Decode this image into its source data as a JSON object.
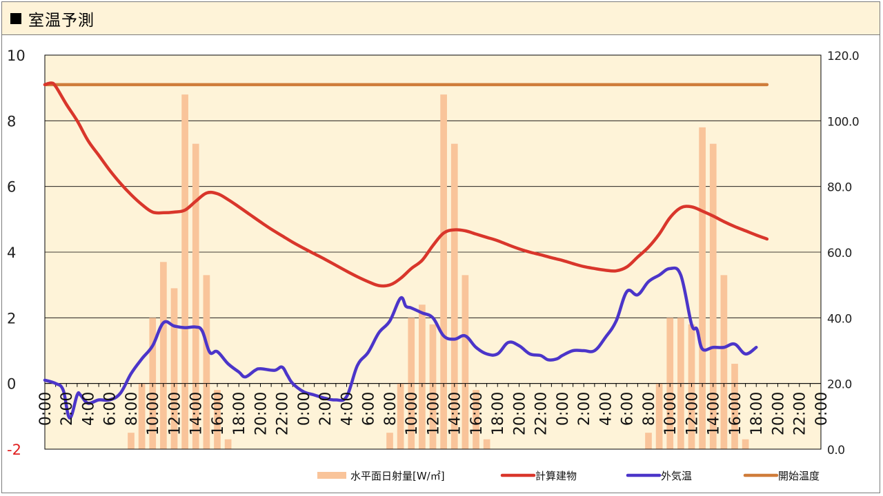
{
  "header": {
    "title": "室温予測",
    "marker_icon": "black-square-icon"
  },
  "chart_data": {
    "type": "bar+line",
    "title": "室温予測",
    "x_tick_labels": [
      "0:00",
      "2:00",
      "4:00",
      "6:00",
      "8:00",
      "10:00",
      "12:00",
      "14:00",
      "16:00",
      "18:00",
      "20:00",
      "22:00",
      "0:00",
      "2:00",
      "4:00",
      "6:00",
      "8:00",
      "10:00",
      "12:00",
      "14:00",
      "16:00",
      "18:00",
      "20:00",
      "22:00",
      "0:00",
      "2:00",
      "4:00",
      "6:00",
      "8:00",
      "10:00",
      "12:00",
      "14:00",
      "16:00",
      "18:00",
      "20:00",
      "22:00",
      "0:00"
    ],
    "hours": 72,
    "y_left": {
      "min": -2,
      "max": 10,
      "ticks": [
        "10",
        "8",
        "6",
        "4",
        "2",
        "0",
        "-2"
      ]
    },
    "y_right": {
      "min": 0,
      "max": 120,
      "ticks": [
        "120.0",
        "100.0",
        "80.0",
        "60.0",
        "40.0",
        "20.0",
        "0.0"
      ]
    },
    "grid": true,
    "legend": {
      "position": "bottom"
    },
    "series": [
      {
        "name": "水平面日射量[W/㎡]",
        "type": "bar",
        "axis": "right",
        "color": "#f9c49a",
        "points": [
          [
            8,
            5
          ],
          [
            9,
            20
          ],
          [
            10,
            40
          ],
          [
            11,
            57
          ],
          [
            12,
            49
          ],
          [
            13,
            108
          ],
          [
            14,
            93
          ],
          [
            15,
            53
          ],
          [
            16,
            18
          ],
          [
            17,
            3
          ],
          [
            32,
            5
          ],
          [
            33,
            20
          ],
          [
            34,
            40
          ],
          [
            35,
            44
          ],
          [
            36,
            38
          ],
          [
            37,
            108
          ],
          [
            38,
            93
          ],
          [
            39,
            53
          ],
          [
            40,
            18
          ],
          [
            41,
            3
          ],
          [
            56,
            5
          ],
          [
            57,
            20
          ],
          [
            58,
            40
          ],
          [
            59,
            40
          ],
          [
            60,
            38
          ],
          [
            61,
            98
          ],
          [
            62,
            93
          ],
          [
            63,
            53
          ],
          [
            64,
            26
          ],
          [
            65,
            3
          ]
        ]
      },
      {
        "name": "計算建物",
        "type": "line",
        "axis": "left",
        "color": "#d9362b",
        "points": [
          [
            0,
            9.1
          ],
          [
            0.6,
            9.15
          ],
          [
            1,
            9.05
          ],
          [
            2,
            8.5
          ],
          [
            3,
            8.0
          ],
          [
            4,
            7.4
          ],
          [
            5,
            6.95
          ],
          [
            6,
            6.5
          ],
          [
            7,
            6.1
          ],
          [
            8,
            5.75
          ],
          [
            9,
            5.45
          ],
          [
            10,
            5.22
          ],
          [
            11,
            5.2
          ],
          [
            12,
            5.22
          ],
          [
            13,
            5.28
          ],
          [
            14,
            5.55
          ],
          [
            15,
            5.8
          ],
          [
            16,
            5.78
          ],
          [
            17,
            5.6
          ],
          [
            18,
            5.38
          ],
          [
            19,
            5.15
          ],
          [
            20,
            4.92
          ],
          [
            21,
            4.7
          ],
          [
            22,
            4.5
          ],
          [
            23,
            4.3
          ],
          [
            24,
            4.12
          ],
          [
            25,
            3.95
          ],
          [
            26,
            3.78
          ],
          [
            27,
            3.6
          ],
          [
            28,
            3.42
          ],
          [
            29,
            3.25
          ],
          [
            30,
            3.1
          ],
          [
            31,
            2.98
          ],
          [
            32,
            3.0
          ],
          [
            33,
            3.2
          ],
          [
            34,
            3.5
          ],
          [
            35,
            3.75
          ],
          [
            36,
            4.2
          ],
          [
            37,
            4.58
          ],
          [
            38,
            4.68
          ],
          [
            39,
            4.65
          ],
          [
            40,
            4.55
          ],
          [
            41,
            4.45
          ],
          [
            42,
            4.35
          ],
          [
            43,
            4.22
          ],
          [
            44,
            4.1
          ],
          [
            45,
            4.0
          ],
          [
            46,
            3.92
          ],
          [
            47,
            3.83
          ],
          [
            48,
            3.75
          ],
          [
            49,
            3.65
          ],
          [
            50,
            3.56
          ],
          [
            51,
            3.5
          ],
          [
            52,
            3.45
          ],
          [
            53,
            3.43
          ],
          [
            54,
            3.55
          ],
          [
            55,
            3.85
          ],
          [
            56,
            4.15
          ],
          [
            57,
            4.55
          ],
          [
            58,
            5.05
          ],
          [
            59,
            5.35
          ],
          [
            60,
            5.38
          ],
          [
            61,
            5.25
          ],
          [
            62,
            5.1
          ],
          [
            63,
            4.93
          ],
          [
            64,
            4.78
          ],
          [
            65,
            4.65
          ],
          [
            66,
            4.52
          ],
          [
            67,
            4.4
          ]
        ]
      },
      {
        "name": "外気温",
        "type": "line",
        "axis": "left",
        "color": "#4b35c9",
        "points": [
          [
            0,
            0.1
          ],
          [
            1,
            0.0
          ],
          [
            1.7,
            -0.2
          ],
          [
            2.3,
            -1.05
          ],
          [
            3,
            -0.35
          ],
          [
            3.3,
            -0.35
          ],
          [
            4,
            -0.6
          ],
          [
            5,
            -0.5
          ],
          [
            6,
            -0.5
          ],
          [
            7,
            -0.3
          ],
          [
            8,
            0.3
          ],
          [
            9,
            0.75
          ],
          [
            10,
            1.15
          ],
          [
            11,
            1.85
          ],
          [
            12,
            1.75
          ],
          [
            13,
            1.7
          ],
          [
            14,
            1.72
          ],
          [
            14.6,
            1.6
          ],
          [
            15.3,
            0.95
          ],
          [
            16,
            0.97
          ],
          [
            17,
            0.6
          ],
          [
            18,
            0.35
          ],
          [
            18.6,
            0.2
          ],
          [
            19.5,
            0.4
          ],
          [
            20,
            0.45
          ],
          [
            21.3,
            0.4
          ],
          [
            22,
            0.5
          ],
          [
            22.5,
            0.25
          ],
          [
            23,
            0.0
          ],
          [
            24,
            -0.25
          ],
          [
            25,
            -0.35
          ],
          [
            26,
            -0.45
          ],
          [
            27,
            -0.5
          ],
          [
            28,
            -0.4
          ],
          [
            29,
            0.55
          ],
          [
            30,
            0.95
          ],
          [
            31,
            1.55
          ],
          [
            32,
            1.9
          ],
          [
            33,
            2.6
          ],
          [
            33.5,
            2.35
          ],
          [
            34,
            2.3
          ],
          [
            35,
            2.15
          ],
          [
            36,
            2.0
          ],
          [
            37,
            1.45
          ],
          [
            38,
            1.35
          ],
          [
            39,
            1.45
          ],
          [
            40,
            1.1
          ],
          [
            41,
            0.9
          ],
          [
            42,
            0.9
          ],
          [
            43,
            1.25
          ],
          [
            44,
            1.15
          ],
          [
            45,
            0.9
          ],
          [
            46,
            0.85
          ],
          [
            46.7,
            0.72
          ],
          [
            47.5,
            0.75
          ],
          [
            48,
            0.85
          ],
          [
            49,
            1.0
          ],
          [
            50,
            1.0
          ],
          [
            51,
            1.0
          ],
          [
            52,
            1.4
          ],
          [
            53,
            1.9
          ],
          [
            54,
            2.8
          ],
          [
            55,
            2.7
          ],
          [
            56,
            3.1
          ],
          [
            57,
            3.3
          ],
          [
            58,
            3.5
          ],
          [
            59,
            3.3
          ],
          [
            60,
            1.8
          ],
          [
            60.5,
            1.65
          ],
          [
            61,
            1.05
          ],
          [
            62,
            1.1
          ],
          [
            63,
            1.1
          ],
          [
            64,
            1.2
          ],
          [
            65,
            0.9
          ],
          [
            66,
            1.1
          ]
        ]
      },
      {
        "name": "開始温度",
        "type": "line",
        "axis": "left",
        "color": "#cf7c3a",
        "points": [
          [
            0,
            9.1
          ],
          [
            67,
            9.1
          ]
        ]
      }
    ]
  }
}
